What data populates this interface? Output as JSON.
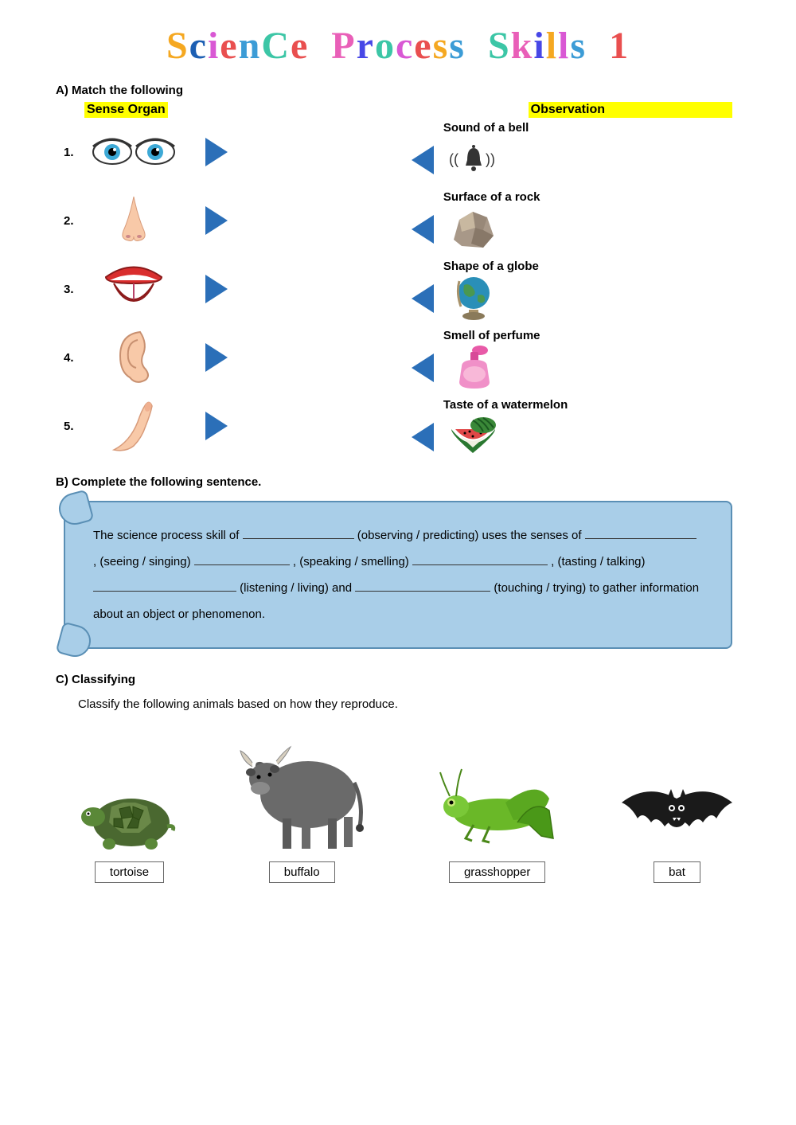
{
  "title_chars": [
    {
      "c": "S",
      "color": "#f5a821"
    },
    {
      "c": "c",
      "color": "#1c5fb3"
    },
    {
      "c": "i",
      "color": "#d958d4"
    },
    {
      "c": "e",
      "color": "#e94f4f"
    },
    {
      "c": "n",
      "color": "#3c9cd6"
    },
    {
      "c": "C",
      "color": "#3cc6a6"
    },
    {
      "c": "e",
      "color": "#e94f4f"
    },
    {
      "c": " ",
      "color": "#000"
    },
    {
      "c": " ",
      "color": "#000"
    },
    {
      "c": "P",
      "color": "#e95fb8"
    },
    {
      "c": "r",
      "color": "#4747e6"
    },
    {
      "c": "o",
      "color": "#3cc6a6"
    },
    {
      "c": "c",
      "color": "#d958d4"
    },
    {
      "c": "e",
      "color": "#e94f4f"
    },
    {
      "c": "s",
      "color": "#f5a821"
    },
    {
      "c": "s",
      "color": "#3c9cd6"
    },
    {
      "c": " ",
      "color": "#000"
    },
    {
      "c": " ",
      "color": "#000"
    },
    {
      "c": "S",
      "color": "#3cc6a6"
    },
    {
      "c": "k",
      "color": "#e95fb8"
    },
    {
      "c": "i",
      "color": "#4747e6"
    },
    {
      "c": "l",
      "color": "#f5a821"
    },
    {
      "c": "l",
      "color": "#d958d4"
    },
    {
      "c": "s",
      "color": "#3c9cd6"
    },
    {
      "c": " ",
      "color": "#000"
    },
    {
      "c": " ",
      "color": "#000"
    },
    {
      "c": "1",
      "color": "#e94f4f"
    }
  ],
  "sectionA": {
    "label": "A) Match the following",
    "left_header": "Sense Organ",
    "right_header": "Observation",
    "left": [
      {
        "num": "1.",
        "name": "eyes"
      },
      {
        "num": "2.",
        "name": "nose"
      },
      {
        "num": "3.",
        "name": "tongue"
      },
      {
        "num": "4.",
        "name": "ear"
      },
      {
        "num": "5.",
        "name": "finger"
      }
    ],
    "right": [
      {
        "label": "Sound of a bell",
        "name": "bell"
      },
      {
        "label": "Surface of a rock",
        "name": "rock"
      },
      {
        "label": "Shape of a globe",
        "name": "globe"
      },
      {
        "label": "Smell of perfume",
        "name": "perfume"
      },
      {
        "label": "Taste of a watermelon",
        "name": "watermelon"
      }
    ]
  },
  "sectionB": {
    "label": "B)  Complete the following sentence.",
    "text_parts": [
      "The science process skill of ",
      " (observing / predicting) uses the senses of ",
      ", (seeing / singing) ",
      ", (speaking / smelling) ",
      ", (tasting / talking) ",
      " (listening / living) and ",
      " (touching / trying) to gather information about an object or phenomenon."
    ]
  },
  "sectionC": {
    "label": "C)  Classifying",
    "instruction": "Classify the following animals based on how they reproduce.",
    "animals": [
      {
        "name": "tortoise"
      },
      {
        "name": "buffalo"
      },
      {
        "name": "grasshopper"
      },
      {
        "name": "bat"
      }
    ]
  }
}
